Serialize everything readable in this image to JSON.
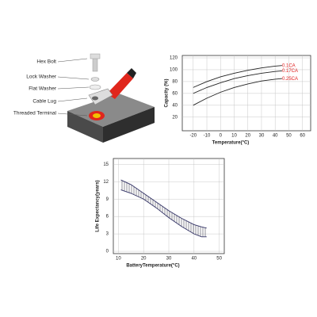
{
  "diagram": {
    "labels": [
      "Hex Bolt",
      "Lock Washer",
      "Flat Washer",
      "Cable Lug",
      "Threaded Terminal"
    ]
  },
  "chart_data": [
    {
      "type": "line",
      "xlabel": "Temperature(°C)",
      "ylabel": "Capacity (%)",
      "x": [
        -20,
        -10,
        0,
        10,
        20,
        30,
        40,
        45
      ],
      "series": [
        {
          "name": "0.1CA",
          "color": "#222222",
          "values": [
            70,
            80,
            88,
            94,
            99,
            103,
            106,
            107
          ]
        },
        {
          "name": "0.17CA",
          "color": "#222222",
          "values": [
            60,
            70,
            78,
            85,
            90,
            94,
            97,
            98
          ]
        },
        {
          "name": "0.25CA",
          "color": "#222222",
          "values": [
            40,
            52,
            62,
            70,
            76,
            81,
            84,
            85
          ]
        }
      ],
      "legend_color": "#e02020",
      "xlim": [
        -28,
        66
      ],
      "ylim": [
        -3,
        124
      ],
      "xticks": [
        -20,
        -10,
        0,
        10,
        20,
        30,
        40,
        50,
        60
      ],
      "yticks": [
        20,
        40,
        60,
        80,
        100,
        120
      ],
      "grid": true
    },
    {
      "type": "band",
      "xlabel": "BatteryTemperature(°C)",
      "ylabel": "Life Expectancy(years)",
      "x": [
        11,
        15,
        20,
        25,
        30,
        35,
        40,
        43,
        45
      ],
      "series": [
        {
          "color": "#333366",
          "values": [
            12.3,
            11.5,
            10,
            8.5,
            7,
            5.7,
            4.6,
            4.2,
            4
          ]
        },
        {
          "color": "#333366",
          "values": [
            10.6,
            10,
            9,
            7.5,
            5.8,
            4.3,
            3,
            2.5,
            2.5
          ]
        }
      ],
      "xlim": [
        8,
        52
      ],
      "ylim": [
        -0.4,
        16
      ],
      "xticks": [
        10,
        20,
        30,
        40,
        50
      ],
      "yticks": [
        0,
        3,
        6,
        9,
        12,
        15
      ],
      "grid": true
    }
  ]
}
